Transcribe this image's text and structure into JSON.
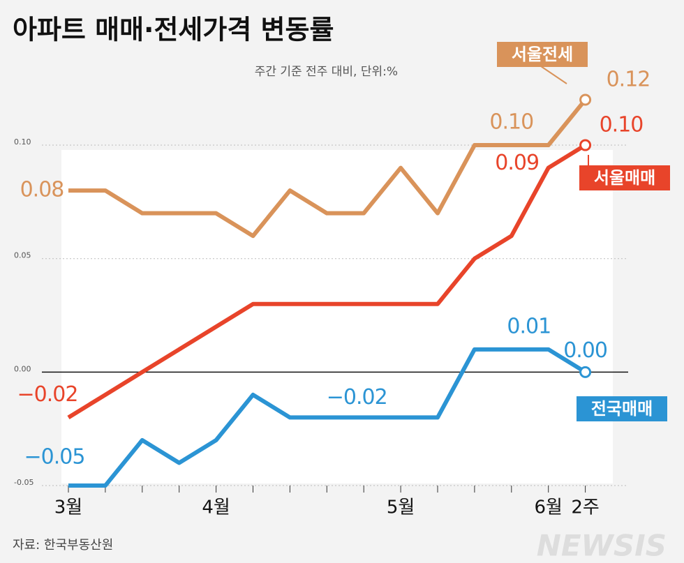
{
  "chart_data": {
    "type": "line",
    "title": "아파트 매매·전세가격 변동률",
    "subtitle": "주간 기준 전주 대비, 단위:%",
    "source": "자료: 한국부동산원",
    "watermark": "NEWSIS",
    "categories": [
      "3월",
      null,
      null,
      null,
      "4월",
      null,
      null,
      null,
      null,
      "5월",
      null,
      null,
      null,
      "6월",
      "2주"
    ],
    "series": [
      {
        "name": "서울전세",
        "color": "#d9935a",
        "values": [
          0.08,
          0.08,
          0.07,
          0.07,
          0.07,
          0.06,
          0.08,
          0.07,
          0.07,
          0.09,
          0.07,
          0.1,
          0.1,
          0.1,
          0.12
        ],
        "value_labels": [
          "0.08",
          null,
          null,
          null,
          null,
          null,
          null,
          null,
          null,
          null,
          null,
          null,
          "0.10",
          null,
          "0.12"
        ]
      },
      {
        "name": "서울매매",
        "color": "#e8442a",
        "values": [
          -0.02,
          -0.01,
          0.0,
          0.01,
          0.02,
          0.03,
          0.03,
          0.03,
          0.03,
          0.03,
          0.03,
          0.05,
          0.06,
          0.09,
          0.1
        ],
        "value_labels": [
          "−0.02",
          null,
          null,
          null,
          null,
          null,
          null,
          null,
          null,
          null,
          null,
          null,
          null,
          "0.09",
          "0.10"
        ]
      },
      {
        "name": "전국매매",
        "color": "#2b94d4",
        "values": [
          -0.05,
          -0.05,
          -0.03,
          -0.04,
          -0.03,
          -0.01,
          -0.02,
          -0.02,
          -0.02,
          -0.02,
          -0.02,
          0.01,
          0.01,
          0.01,
          0.0
        ],
        "value_labels": [
          "−0.05",
          null,
          null,
          null,
          null,
          null,
          null,
          null,
          "−0.02",
          null,
          null,
          null,
          "0.01",
          null,
          "0.00"
        ]
      }
    ],
    "ylim": [
      -0.05,
      0.12
    ],
    "yticks": [
      {
        "value": -0.05,
        "label": "-0.05"
      },
      {
        "value": 0,
        "label": "0.00"
      },
      {
        "value": 0.05,
        "label": "0.05"
      },
      {
        "value": 0.1,
        "label": "0.10"
      }
    ],
    "grid": true
  }
}
